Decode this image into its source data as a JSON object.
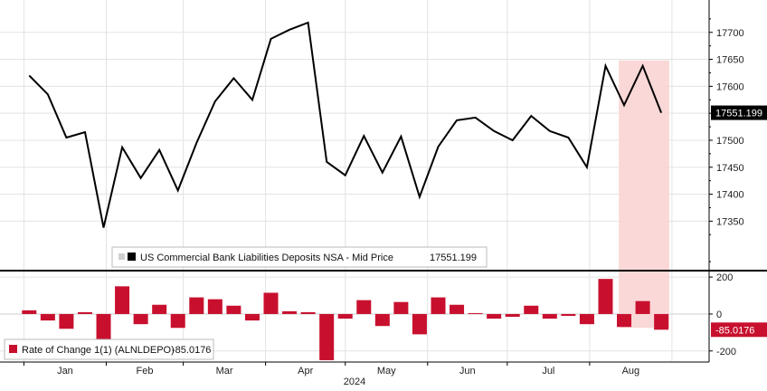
{
  "chart_data": [
    {
      "type": "line",
      "ylim": [
        17260,
        17760
      ],
      "yticks": [
        17350,
        17400,
        17450,
        17500,
        17550,
        17600,
        17650,
        17700
      ],
      "last_value_label": "17551.199",
      "legend": {
        "label": "US Commercial Bank Liabilities Deposits NSA - Mid Price",
        "value": "17551.199"
      },
      "grid": true,
      "x": [
        "2024-01-03",
        "2024-01-10",
        "2024-01-17",
        "2024-01-24",
        "2024-01-31",
        "2024-02-07",
        "2024-02-14",
        "2024-02-21",
        "2024-02-28",
        "2024-03-06",
        "2024-03-13",
        "2024-03-20",
        "2024-03-27",
        "2024-04-03",
        "2024-04-10",
        "2024-04-17",
        "2024-04-24",
        "2024-05-01",
        "2024-05-08",
        "2024-05-15",
        "2024-05-22",
        "2024-05-29",
        "2024-06-05",
        "2024-06-12",
        "2024-06-19",
        "2024-06-26",
        "2024-07-03",
        "2024-07-10",
        "2024-07-17",
        "2024-07-24",
        "2024-07-31",
        "2024-08-07",
        "2024-08-14",
        "2024-08-21",
        "2024-08-28"
      ],
      "values": [
        17620,
        17585,
        17505,
        17515,
        17338,
        17487,
        17430,
        17482,
        17407,
        17495,
        17572,
        17615,
        17575,
        17688,
        17705,
        17718,
        17460,
        17435,
        17508,
        17440,
        17507,
        17395,
        17488,
        17537,
        17542,
        17517,
        17500,
        17545,
        17517,
        17505,
        17450,
        17638,
        17565,
        17638,
        17551
      ],
      "color": "#000000"
    },
    {
      "type": "bar",
      "ylim": [
        -260,
        230
      ],
      "yticks": [
        -200,
        0,
        200
      ],
      "last_value_label": "-85.0176",
      "legend": {
        "label": "Rate of Change 1(1) (ALNLDEPO)",
        "value": "-85.0176"
      },
      "x": [
        "2024-01-03",
        "2024-01-10",
        "2024-01-17",
        "2024-01-24",
        "2024-01-31",
        "2024-02-07",
        "2024-02-14",
        "2024-02-21",
        "2024-02-28",
        "2024-03-06",
        "2024-03-13",
        "2024-03-20",
        "2024-03-27",
        "2024-04-03",
        "2024-04-10",
        "2024-04-17",
        "2024-04-24",
        "2024-05-01",
        "2024-05-08",
        "2024-05-15",
        "2024-05-22",
        "2024-05-29",
        "2024-06-05",
        "2024-06-12",
        "2024-06-19",
        "2024-06-26",
        "2024-07-03",
        "2024-07-10",
        "2024-07-17",
        "2024-07-24",
        "2024-07-31",
        "2024-08-07",
        "2024-08-14",
        "2024-08-21",
        "2024-08-28"
      ],
      "values": [
        20,
        -35,
        -80,
        10,
        -175,
        150,
        -55,
        50,
        -75,
        90,
        80,
        45,
        -35,
        115,
        15,
        10,
        -250,
        -25,
        75,
        -65,
        65,
        -110,
        90,
        50,
        5,
        -25,
        -15,
        45,
        -25,
        -10,
        -55,
        190,
        -70,
        70,
        -85
      ],
      "color": "#c8102e"
    }
  ],
  "x_axis": {
    "months": [
      "Jan",
      "Feb",
      "Mar",
      "Apr",
      "May",
      "Jun",
      "Jul",
      "Aug"
    ],
    "year": "2024"
  },
  "highlight": {
    "from": "2024-08-12",
    "to": "2024-08-31",
    "color": "#f9d4d4"
  }
}
